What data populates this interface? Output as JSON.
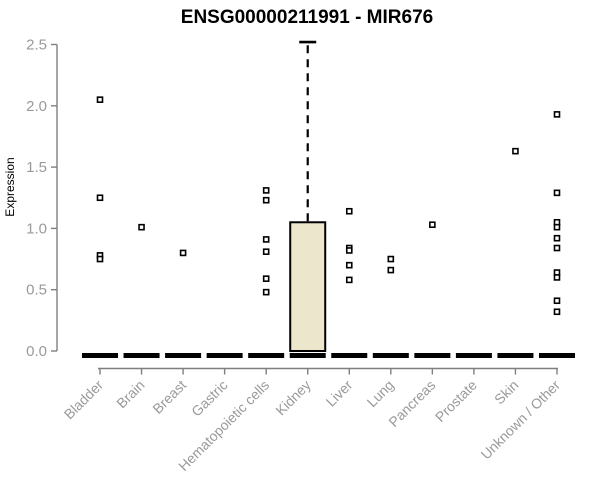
{
  "chart_data": {
    "type": "boxplot",
    "title": "ENSG00000211991 - MIR676",
    "xlabel": "",
    "ylabel": "Expression",
    "ylim": [
      0,
      2.5
    ],
    "yticks": [
      0.0,
      0.5,
      1.0,
      1.5,
      2.0,
      2.5
    ],
    "ytick_labels": [
      "0.0",
      "0.5",
      "1.0",
      "1.5",
      "2.0",
      "2.5"
    ],
    "grid": false,
    "legend": "none",
    "categories": [
      "Bladder",
      "Brain",
      "Breast",
      "Gastric",
      "Hematopoietic cells",
      "Kidney",
      "Liver",
      "Lung",
      "Pancreas",
      "Prostate",
      "Skin",
      "Unknown / Other"
    ],
    "boxes": [
      {
        "category": "Bladder",
        "median": 0,
        "q1": 0,
        "q3": 0,
        "whisker_low": 0,
        "whisker_high": 0,
        "outliers": [
          2.05,
          1.25,
          0.78,
          0.75
        ]
      },
      {
        "category": "Brain",
        "median": 0,
        "q1": 0,
        "q3": 0,
        "whisker_low": 0,
        "whisker_high": 0,
        "outliers": [
          1.01
        ]
      },
      {
        "category": "Breast",
        "median": 0,
        "q1": 0,
        "q3": 0,
        "whisker_low": 0,
        "whisker_high": 0,
        "outliers": [
          0.8
        ]
      },
      {
        "category": "Gastric",
        "median": 0,
        "q1": 0,
        "q3": 0,
        "whisker_low": 0,
        "whisker_high": 0,
        "outliers": []
      },
      {
        "category": "Hematopoietic cells",
        "median": 0,
        "q1": 0,
        "q3": 0,
        "whisker_low": 0,
        "whisker_high": 0,
        "outliers": [
          1.31,
          1.23,
          0.91,
          0.81,
          0.59,
          0.48
        ]
      },
      {
        "category": "Kidney",
        "median": 0,
        "q1": 0,
        "q3": 1.05,
        "whisker_low": 0,
        "whisker_high": 2.52,
        "outliers": []
      },
      {
        "category": "Liver",
        "median": 0,
        "q1": 0,
        "q3": 0,
        "whisker_low": 0,
        "whisker_high": 0,
        "outliers": [
          1.14,
          0.84,
          0.82,
          0.7,
          0.58
        ]
      },
      {
        "category": "Lung",
        "median": 0,
        "q1": 0,
        "q3": 0,
        "whisker_low": 0,
        "whisker_high": 0,
        "outliers": [
          0.75,
          0.66
        ]
      },
      {
        "category": "Pancreas",
        "median": 0,
        "q1": 0,
        "q3": 0,
        "whisker_low": 0,
        "whisker_high": 0,
        "outliers": [
          1.03
        ]
      },
      {
        "category": "Prostate",
        "median": 0,
        "q1": 0,
        "q3": 0,
        "whisker_low": 0,
        "whisker_high": 0,
        "outliers": []
      },
      {
        "category": "Skin",
        "median": 0,
        "q1": 0,
        "q3": 0,
        "whisker_low": 0,
        "whisker_high": 0,
        "outliers": [
          1.63
        ]
      },
      {
        "category": "Unknown / Other",
        "median": 0,
        "q1": 0,
        "q3": 0,
        "whisker_low": 0,
        "whisker_high": 0,
        "outliers": [
          1.93,
          1.29,
          1.05,
          1.01,
          0.92,
          0.84,
          0.64,
          0.6,
          0.41,
          0.32
        ]
      }
    ],
    "colors": {
      "box_fill": "#ECE7CC",
      "box_border": "#000000",
      "median": "#000000",
      "whisker": "#000000",
      "outlier_stroke": "#000000",
      "outlier_fill": "#ffffff",
      "axis": "#7f7f7f",
      "tick_label": "#9a9a9a",
      "title": "#000000"
    }
  }
}
